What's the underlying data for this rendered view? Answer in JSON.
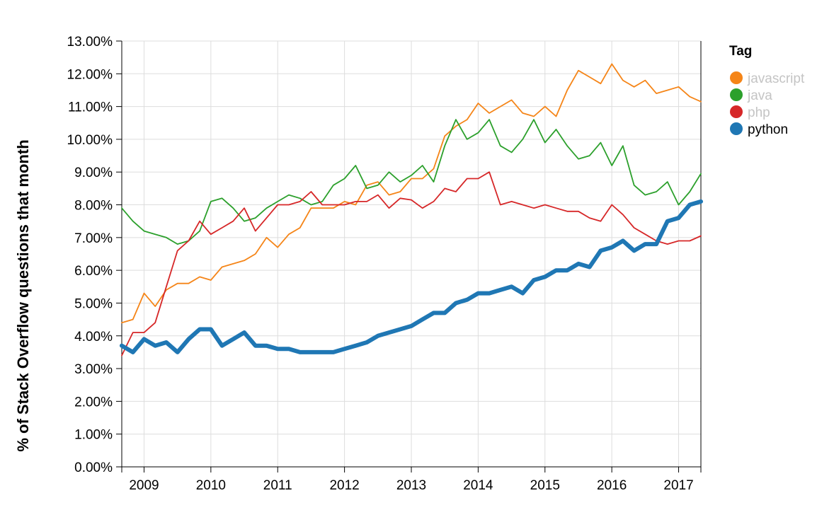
{
  "chart_data": {
    "type": "line",
    "title": "",
    "xlabel": "",
    "ylabel": "% of Stack Overflow questions that month",
    "ylim": [
      0,
      13
    ],
    "xlim": [
      "2008-09",
      "2017-05"
    ],
    "y_ticks": [
      "0.00%",
      "1.00%",
      "2.00%",
      "3.00%",
      "4.00%",
      "5.00%",
      "6.00%",
      "7.00%",
      "8.00%",
      "9.00%",
      "10.00%",
      "11.00%",
      "12.00%",
      "13.00%"
    ],
    "x_ticks": [
      "2009",
      "2010",
      "2011",
      "2012",
      "2013",
      "2014",
      "2015",
      "2016",
      "2017"
    ],
    "grid": true,
    "legend": {
      "title": "Tag",
      "placement": "right"
    },
    "highlighted_series": "python",
    "series": [
      {
        "name": "javascript",
        "color": "#f58518",
        "muted": true,
        "points": [
          [
            "2008-09",
            4.4
          ],
          [
            "2008-11",
            4.5
          ],
          [
            "2009-01",
            5.3
          ],
          [
            "2009-03",
            4.9
          ],
          [
            "2009-05",
            5.4
          ],
          [
            "2009-07",
            5.6
          ],
          [
            "2009-09",
            5.6
          ],
          [
            "2009-11",
            5.8
          ],
          [
            "2010-01",
            5.7
          ],
          [
            "2010-03",
            6.1
          ],
          [
            "2010-05",
            6.2
          ],
          [
            "2010-07",
            6.3
          ],
          [
            "2010-09",
            6.5
          ],
          [
            "2010-11",
            7.0
          ],
          [
            "2011-01",
            6.7
          ],
          [
            "2011-03",
            7.1
          ],
          [
            "2011-05",
            7.3
          ],
          [
            "2011-07",
            7.9
          ],
          [
            "2011-09",
            7.9
          ],
          [
            "2011-11",
            7.9
          ],
          [
            "2012-01",
            8.1
          ],
          [
            "2012-03",
            8.0
          ],
          [
            "2012-05",
            8.6
          ],
          [
            "2012-07",
            8.7
          ],
          [
            "2012-09",
            8.3
          ],
          [
            "2012-11",
            8.4
          ],
          [
            "2013-01",
            8.8
          ],
          [
            "2013-03",
            8.8
          ],
          [
            "2013-05",
            9.1
          ],
          [
            "2013-07",
            10.1
          ],
          [
            "2013-09",
            10.4
          ],
          [
            "2013-11",
            10.6
          ],
          [
            "2014-01",
            11.1
          ],
          [
            "2014-03",
            10.8
          ],
          [
            "2014-05",
            11.0
          ],
          [
            "2014-07",
            11.2
          ],
          [
            "2014-09",
            10.8
          ],
          [
            "2014-11",
            10.7
          ],
          [
            "2015-01",
            11.0
          ],
          [
            "2015-03",
            10.7
          ],
          [
            "2015-05",
            11.5
          ],
          [
            "2015-07",
            12.1
          ],
          [
            "2015-09",
            11.9
          ],
          [
            "2015-11",
            11.7
          ],
          [
            "2016-01",
            12.3
          ],
          [
            "2016-03",
            11.8
          ],
          [
            "2016-05",
            11.6
          ],
          [
            "2016-07",
            11.8
          ],
          [
            "2016-09",
            11.4
          ],
          [
            "2016-11",
            11.5
          ],
          [
            "2017-01",
            11.6
          ],
          [
            "2017-03",
            11.3
          ],
          [
            "2017-05",
            11.15
          ]
        ]
      },
      {
        "name": "java",
        "color": "#2ca02c",
        "muted": true,
        "points": [
          [
            "2008-09",
            7.9
          ],
          [
            "2008-11",
            7.5
          ],
          [
            "2009-01",
            7.2
          ],
          [
            "2009-03",
            7.1
          ],
          [
            "2009-05",
            7.0
          ],
          [
            "2009-07",
            6.8
          ],
          [
            "2009-09",
            6.9
          ],
          [
            "2009-11",
            7.2
          ],
          [
            "2010-01",
            8.1
          ],
          [
            "2010-03",
            8.2
          ],
          [
            "2010-05",
            7.9
          ],
          [
            "2010-07",
            7.5
          ],
          [
            "2010-09",
            7.6
          ],
          [
            "2010-11",
            7.9
          ],
          [
            "2011-01",
            8.1
          ],
          [
            "2011-03",
            8.3
          ],
          [
            "2011-05",
            8.2
          ],
          [
            "2011-07",
            8.0
          ],
          [
            "2011-09",
            8.1
          ],
          [
            "2011-11",
            8.6
          ],
          [
            "2012-01",
            8.8
          ],
          [
            "2012-03",
            9.2
          ],
          [
            "2012-05",
            8.5
          ],
          [
            "2012-07",
            8.6
          ],
          [
            "2012-09",
            9.0
          ],
          [
            "2012-11",
            8.7
          ],
          [
            "2013-01",
            8.9
          ],
          [
            "2013-03",
            9.2
          ],
          [
            "2013-05",
            8.7
          ],
          [
            "2013-07",
            9.8
          ],
          [
            "2013-09",
            10.6
          ],
          [
            "2013-11",
            10.0
          ],
          [
            "2014-01",
            10.2
          ],
          [
            "2014-03",
            10.6
          ],
          [
            "2014-05",
            9.8
          ],
          [
            "2014-07",
            9.6
          ],
          [
            "2014-09",
            10.0
          ],
          [
            "2014-11",
            10.6
          ],
          [
            "2015-01",
            9.9
          ],
          [
            "2015-03",
            10.3
          ],
          [
            "2015-05",
            9.8
          ],
          [
            "2015-07",
            9.4
          ],
          [
            "2015-09",
            9.5
          ],
          [
            "2015-11",
            9.9
          ],
          [
            "2016-01",
            9.2
          ],
          [
            "2016-03",
            9.8
          ],
          [
            "2016-05",
            8.6
          ],
          [
            "2016-07",
            8.3
          ],
          [
            "2016-09",
            8.4
          ],
          [
            "2016-11",
            8.7
          ],
          [
            "2017-01",
            8.0
          ],
          [
            "2017-03",
            8.4
          ],
          [
            "2017-05",
            8.95
          ]
        ]
      },
      {
        "name": "php",
        "color": "#d62728",
        "muted": true,
        "points": [
          [
            "2008-09",
            3.4
          ],
          [
            "2008-11",
            4.1
          ],
          [
            "2009-01",
            4.1
          ],
          [
            "2009-03",
            4.4
          ],
          [
            "2009-05",
            5.5
          ],
          [
            "2009-07",
            6.6
          ],
          [
            "2009-09",
            6.9
          ],
          [
            "2009-11",
            7.5
          ],
          [
            "2010-01",
            7.1
          ],
          [
            "2010-03",
            7.3
          ],
          [
            "2010-05",
            7.5
          ],
          [
            "2010-07",
            7.9
          ],
          [
            "2010-09",
            7.2
          ],
          [
            "2010-11",
            7.6
          ],
          [
            "2011-01",
            8.0
          ],
          [
            "2011-03",
            8.0
          ],
          [
            "2011-05",
            8.1
          ],
          [
            "2011-07",
            8.4
          ],
          [
            "2011-09",
            8.0
          ],
          [
            "2011-11",
            8.0
          ],
          [
            "2012-01",
            8.0
          ],
          [
            "2012-03",
            8.1
          ],
          [
            "2012-05",
            8.1
          ],
          [
            "2012-07",
            8.3
          ],
          [
            "2012-09",
            7.9
          ],
          [
            "2012-11",
            8.2
          ],
          [
            "2013-01",
            8.15
          ],
          [
            "2013-03",
            7.9
          ],
          [
            "2013-05",
            8.1
          ],
          [
            "2013-07",
            8.5
          ],
          [
            "2013-09",
            8.4
          ],
          [
            "2013-11",
            8.8
          ],
          [
            "2014-01",
            8.8
          ],
          [
            "2014-03",
            9.0
          ],
          [
            "2014-05",
            8.0
          ],
          [
            "2014-07",
            8.1
          ],
          [
            "2014-09",
            8.0
          ],
          [
            "2014-11",
            7.9
          ],
          [
            "2015-01",
            8.0
          ],
          [
            "2015-03",
            7.9
          ],
          [
            "2015-05",
            7.8
          ],
          [
            "2015-07",
            7.8
          ],
          [
            "2015-09",
            7.6
          ],
          [
            "2015-11",
            7.5
          ],
          [
            "2016-01",
            8.0
          ],
          [
            "2016-03",
            7.7
          ],
          [
            "2016-05",
            7.3
          ],
          [
            "2016-07",
            7.1
          ],
          [
            "2016-09",
            6.9
          ],
          [
            "2016-11",
            6.8
          ],
          [
            "2017-01",
            6.9
          ],
          [
            "2017-03",
            6.9
          ],
          [
            "2017-05",
            7.05
          ]
        ]
      },
      {
        "name": "python",
        "color": "#1f77b4",
        "muted": false,
        "points": [
          [
            "2008-09",
            3.7
          ],
          [
            "2008-11",
            3.5
          ],
          [
            "2009-01",
            3.9
          ],
          [
            "2009-03",
            3.7
          ],
          [
            "2009-05",
            3.8
          ],
          [
            "2009-07",
            3.5
          ],
          [
            "2009-09",
            3.9
          ],
          [
            "2009-11",
            4.2
          ],
          [
            "2010-01",
            4.2
          ],
          [
            "2010-03",
            3.7
          ],
          [
            "2010-05",
            3.9
          ],
          [
            "2010-07",
            4.1
          ],
          [
            "2010-09",
            3.7
          ],
          [
            "2010-11",
            3.7
          ],
          [
            "2011-01",
            3.6
          ],
          [
            "2011-03",
            3.6
          ],
          [
            "2011-05",
            3.5
          ],
          [
            "2011-07",
            3.5
          ],
          [
            "2011-09",
            3.5
          ],
          [
            "2011-11",
            3.5
          ],
          [
            "2012-01",
            3.6
          ],
          [
            "2012-03",
            3.7
          ],
          [
            "2012-05",
            3.8
          ],
          [
            "2012-07",
            4.0
          ],
          [
            "2012-09",
            4.1
          ],
          [
            "2012-11",
            4.2
          ],
          [
            "2013-01",
            4.3
          ],
          [
            "2013-03",
            4.5
          ],
          [
            "2013-05",
            4.7
          ],
          [
            "2013-07",
            4.7
          ],
          [
            "2013-09",
            5.0
          ],
          [
            "2013-11",
            5.1
          ],
          [
            "2014-01",
            5.3
          ],
          [
            "2014-03",
            5.3
          ],
          [
            "2014-05",
            5.4
          ],
          [
            "2014-07",
            5.5
          ],
          [
            "2014-09",
            5.3
          ],
          [
            "2014-11",
            5.7
          ],
          [
            "2015-01",
            5.8
          ],
          [
            "2015-03",
            6.0
          ],
          [
            "2015-05",
            6.0
          ],
          [
            "2015-07",
            6.2
          ],
          [
            "2015-09",
            6.1
          ],
          [
            "2015-11",
            6.6
          ],
          [
            "2016-01",
            6.7
          ],
          [
            "2016-03",
            6.9
          ],
          [
            "2016-05",
            6.6
          ],
          [
            "2016-07",
            6.8
          ],
          [
            "2016-09",
            6.8
          ],
          [
            "2016-11",
            7.5
          ],
          [
            "2017-01",
            7.6
          ],
          [
            "2017-03",
            8.0
          ],
          [
            "2017-05",
            8.1
          ]
        ]
      }
    ]
  }
}
